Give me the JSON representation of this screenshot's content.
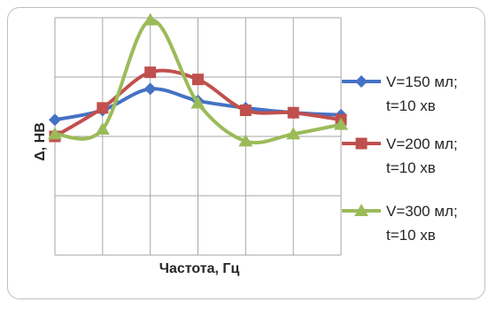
{
  "chart_data": {
    "type": "line",
    "title": "",
    "xlabel": "Частота, Гц",
    "ylabel": "Δ, НВ",
    "x": [
      1,
      2,
      3,
      4,
      5,
      6,
      7
    ],
    "ylim": [
      0,
      5
    ],
    "xlim": [
      1,
      7
    ],
    "grid": true,
    "legend_position": "right",
    "series": [
      {
        "name": "V=150 мл;\nt=10 хв",
        "name_line1": "V=150 мл;",
        "name_line2": "t=10 хв",
        "color": "#4472c4",
        "marker": "diamond",
        "values": [
          2.85,
          3.05,
          3.5,
          3.25,
          3.1,
          3.0,
          2.95
        ]
      },
      {
        "name": "V=200 мл;\nt=10 хв",
        "name_line1": "V=200 мл;",
        "name_line2": "t=10 хв",
        "color": "#c0504d",
        "marker": "square",
        "values": [
          2.5,
          3.1,
          3.85,
          3.7,
          3.05,
          3.0,
          2.85
        ]
      },
      {
        "name": "V=300 мл;\nt=10 хв",
        "name_line1": "V=300 мл;",
        "name_line2": "t=10 хв",
        "color": "#9bbb59",
        "marker": "triangle",
        "values": [
          2.55,
          2.65,
          4.95,
          3.2,
          2.4,
          2.55,
          2.75
        ]
      }
    ]
  }
}
